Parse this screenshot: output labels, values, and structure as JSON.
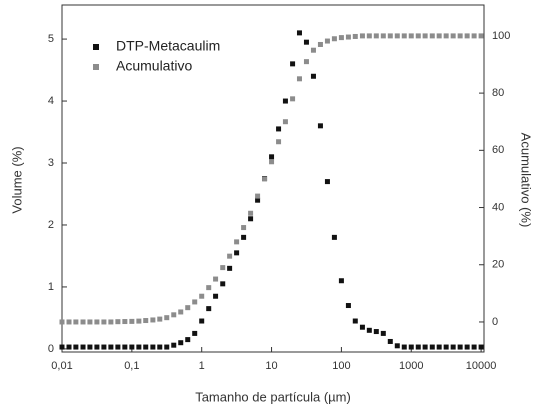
{
  "chart_data": {
    "type": "scatter",
    "x_label": "Tamanho de partícula (µm)",
    "y_label": "Volume (%)",
    "y2_label": "Acumulativo (%)",
    "x_log": true,
    "legend": "top-left",
    "x": [
      0.01,
      0.0126,
      0.0158,
      0.02,
      0.0251,
      0.0316,
      0.0398,
      0.0501,
      0.0631,
      0.0794,
      0.1,
      0.126,
      0.158,
      0.2,
      0.251,
      0.316,
      0.398,
      0.501,
      0.631,
      0.794,
      1,
      1.26,
      1.58,
      2,
      2.51,
      3.16,
      3.98,
      5.01,
      6.31,
      7.94,
      10,
      12.6,
      15.8,
      20,
      25.1,
      31.6,
      39.8,
      50.1,
      63.1,
      79.4,
      100,
      126,
      158,
      200,
      251,
      316,
      398,
      501,
      631,
      794,
      1000,
      1260,
      1580,
      2000,
      2510,
      3160,
      3980,
      5010,
      6310,
      7940,
      10000
    ],
    "series": [
      {
        "name": "DTP-Metacaulim",
        "color": "#111111",
        "values": [
          0.03,
          0.03,
          0.03,
          0.03,
          0.03,
          0.03,
          0.03,
          0.03,
          0.03,
          0.03,
          0.03,
          0.03,
          0.03,
          0.03,
          0.03,
          0.03,
          0.06,
          0.1,
          0.15,
          0.25,
          0.45,
          0.65,
          0.85,
          1.05,
          1.3,
          1.55,
          1.8,
          2.1,
          2.4,
          2.75,
          3.1,
          3.55,
          4.0,
          4.6,
          5.1,
          4.95,
          4.4,
          3.6,
          2.7,
          1.8,
          1.1,
          0.7,
          0.45,
          0.35,
          0.3,
          0.28,
          0.25,
          0.12,
          0.05,
          0.03,
          0.03,
          0.03,
          0.03,
          0.03,
          0.03,
          0.03,
          0.03,
          0.03,
          0.03,
          0.03,
          0.03
        ]
      },
      {
        "name": "Acumulativo",
        "color": "#8c8c8c",
        "axis": "y2",
        "values": [
          0,
          0,
          0,
          0,
          0,
          0,
          0,
          0,
          0.1,
          0.15,
          0.2,
          0.3,
          0.5,
          0.7,
          1,
          1.5,
          2.5,
          3.5,
          5,
          7,
          9,
          12,
          15,
          19,
          23,
          28,
          33,
          38,
          44,
          50,
          56,
          63,
          70,
          78,
          85,
          91,
          95,
          97,
          98.2,
          99,
          99.4,
          99.6,
          99.8,
          100,
          100,
          100,
          100,
          100,
          100,
          100,
          100,
          100,
          100,
          100,
          100,
          100,
          100,
          100,
          100,
          100,
          100
        ]
      }
    ],
    "xlim": [
      0.01,
      11000
    ],
    "xticks": [
      {
        "value": 0.01,
        "label": "0,01"
      },
      {
        "value": 0.1,
        "label": "0,1"
      },
      1,
      10,
      100,
      1000,
      10000
    ],
    "ylim": [
      -0.05,
      5.55
    ],
    "yticks": [
      0,
      1,
      2,
      3,
      4,
      5
    ],
    "y2lim": [
      -10.5,
      110.8
    ],
    "y2ticks": [
      0,
      20,
      40,
      60,
      80,
      100
    ]
  }
}
